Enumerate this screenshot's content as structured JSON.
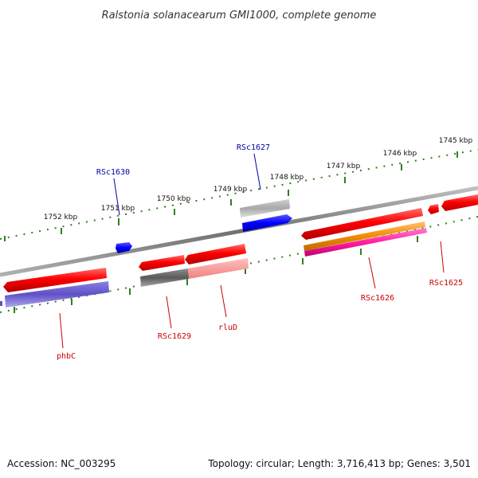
{
  "title": "Ralstonia solanacearum GMI1000, complete genome",
  "footer": {
    "accession": "Accession: NC_003295",
    "info": "Topology: circular; Length: 3,716,413 bp; Genes: 3,501"
  },
  "ticks": [
    "1752 kbp",
    "1751 kbp",
    "1750 kbp",
    "1749 kbp",
    "1748 kbp",
    "1747 kbp",
    "1746 kbp",
    "1745 kbp"
  ],
  "labels": {
    "phbC": "phbC",
    "RSc1629": "RSc1629",
    "rluD": "rluD",
    "RSc1626": "RSc1626",
    "RSc1625": "RSc1625",
    "RSc1630": "RSc1630",
    "RSc1627": "RSc1627"
  },
  "colors": {
    "gene": "#ff0000",
    "cds_forward": "#0000ff",
    "backbone": "#808080",
    "tick": "#2f7f1f",
    "label_red": "#cc0000",
    "label_blue": "#0000aa"
  }
}
